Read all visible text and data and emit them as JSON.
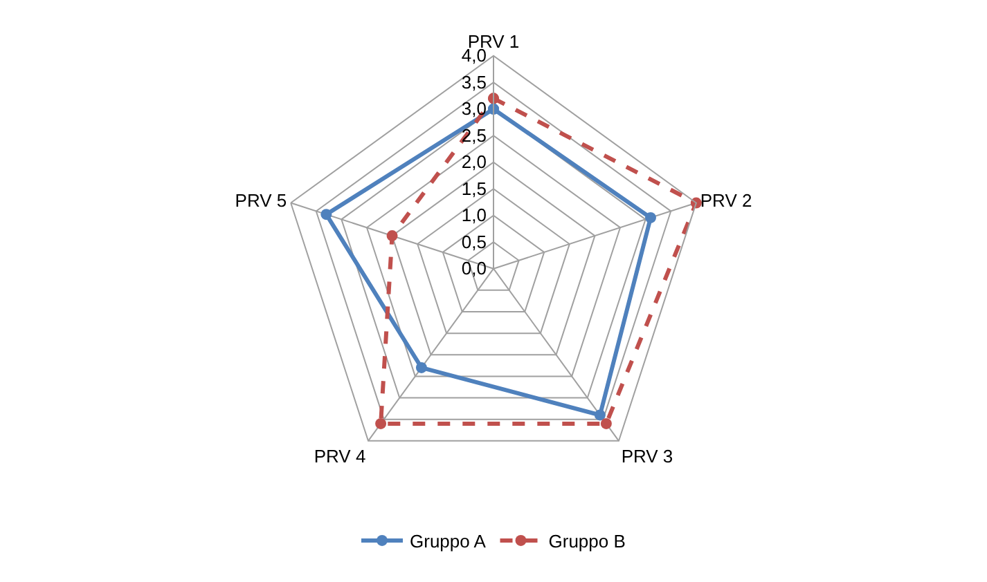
{
  "chart_data": {
    "type": "radar",
    "categories": [
      "PRV 1",
      "PRV 2",
      "PRV 3",
      "PRV 4",
      "PRV 5"
    ],
    "series": [
      {
        "name": "Gruppo A",
        "color": "#4f81bd",
        "values": [
          3.0,
          3.1,
          3.4,
          2.3,
          3.3
        ],
        "line_style": "solid"
      },
      {
        "name": "Gruppo B",
        "color": "#c0504d",
        "values": [
          3.2,
          4.0,
          3.6,
          3.6,
          2.0
        ],
        "line_style": "dashed"
      }
    ],
    "ylim": [
      0,
      4
    ],
    "yticks": [
      {
        "value": 0,
        "label": "0,0"
      },
      {
        "value": 0.5,
        "label": "0,5"
      },
      {
        "value": 1,
        "label": "1,0"
      },
      {
        "value": 1.5,
        "label": "1,5"
      },
      {
        "value": 2,
        "label": "2,0"
      },
      {
        "value": 2.5,
        "label": "2,5"
      },
      {
        "value": 3,
        "label": "3,0"
      },
      {
        "value": 3.5,
        "label": "3,5"
      },
      {
        "value": 4,
        "label": "4,0"
      }
    ],
    "grid": true,
    "legend": "bottom",
    "marker": "circle"
  }
}
